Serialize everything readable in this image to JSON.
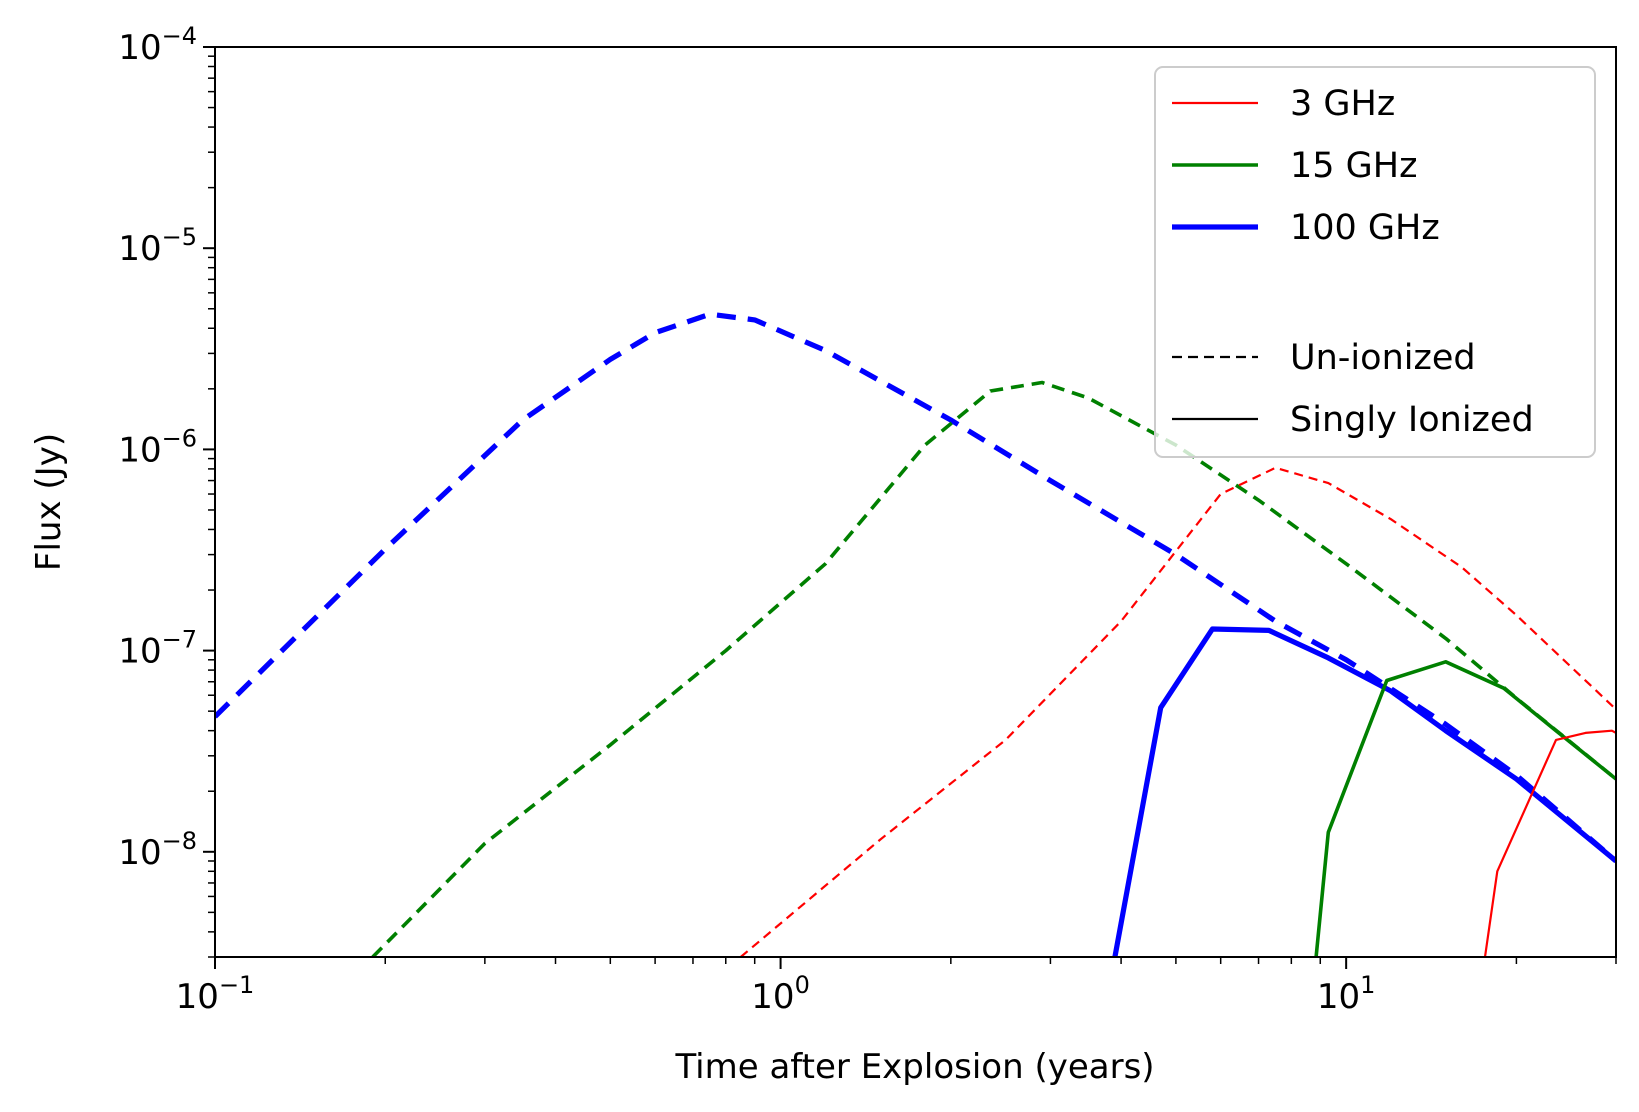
{
  "chart_data": {
    "type": "line",
    "xlabel": "Time after Explosion (years)",
    "ylabel": "Flux (Jy)",
    "xscale": "log",
    "yscale": "log",
    "xlim": [
      0.1,
      30
    ],
    "ylim": [
      3e-09,
      0.0001
    ],
    "x_ticks": [
      {
        "base": "10",
        "exp": "−1"
      },
      {
        "base": "10",
        "exp": "0"
      },
      {
        "base": "10",
        "exp": "1"
      }
    ],
    "y_ticks": [
      {
        "base": "10",
        "exp": "−8"
      },
      {
        "base": "10",
        "exp": "−7"
      },
      {
        "base": "10",
        "exp": "−6"
      },
      {
        "base": "10",
        "exp": "−5"
      },
      {
        "base": "10",
        "exp": "−4"
      }
    ],
    "grid": false,
    "legend_position": "top-right",
    "legend": {
      "frequencies": [
        {
          "label": "3 GHz",
          "color": "#ff0000",
          "style": "thin"
        },
        {
          "label": "15 GHz",
          "color": "#008000",
          "style": "medium"
        },
        {
          "label": "100 GHz",
          "color": "#0000ff",
          "style": "thick"
        }
      ],
      "states": [
        {
          "label": "Un-ionized",
          "dash": "dashed"
        },
        {
          "label": "Singly Ionized",
          "dash": "solid"
        }
      ]
    },
    "series": [
      {
        "freq": "100 GHz",
        "state": "Un-ionized",
        "color": "#0000ff",
        "dashed": true,
        "x": [
          0.1,
          0.2,
          0.35,
          0.5,
          0.6,
          0.75,
          0.9,
          1.2,
          2.0,
          3.0,
          5.0,
          7.5,
          10,
          15,
          20,
          30
        ],
        "y": [
          4.7e-08,
          3.2e-07,
          1.4e-06,
          2.8e-06,
          3.8e-06,
          4.7e-06,
          4.4e-06,
          3.1e-06,
          1.4e-06,
          7e-07,
          3e-07,
          1.4e-07,
          9e-08,
          4.3e-08,
          2.4e-08,
          9e-09
        ]
      },
      {
        "freq": "15 GHz",
        "state": "Un-ionized",
        "color": "#008000",
        "dashed": true,
        "x": [
          0.19,
          0.3,
          0.5,
          0.8,
          1.2,
          1.8,
          2.35,
          2.9,
          3.5,
          5.0,
          7.0,
          10,
          15,
          20,
          30
        ],
        "y": [
          3e-09,
          1.1e-08,
          3.4e-08,
          1e-07,
          2.7e-07,
          1.05e-06,
          1.95e-06,
          2.15e-06,
          1.8e-06,
          1.05e-06,
          5.6e-07,
          2.7e-07,
          1.15e-07,
          5.8e-08,
          2.3e-08
        ]
      },
      {
        "freq": "3 GHz",
        "state": "Un-ionized",
        "color": "#ff0000",
        "dashed": true,
        "x": [
          0.85,
          1.5,
          2.5,
          4.0,
          6.0,
          7.5,
          9.3,
          12,
          16,
          20,
          30
        ],
        "y": [
          3e-09,
          1.15e-08,
          3.6e-08,
          1.4e-07,
          6e-07,
          8.1e-07,
          6.8e-07,
          4.5e-07,
          2.6e-07,
          1.5e-07,
          5.1e-08
        ]
      },
      {
        "freq": "100 GHz",
        "state": "Singly Ionized",
        "color": "#0000ff",
        "dashed": false,
        "x": [
          3.9,
          4.7,
          5.8,
          7.3,
          9.3,
          12,
          15,
          20,
          30
        ],
        "y": [
          3e-09,
          5.2e-08,
          1.28e-07,
          1.26e-07,
          9.2e-08,
          6.3e-08,
          4e-08,
          2.3e-08,
          9e-09
        ]
      },
      {
        "freq": "15 GHz",
        "state": "Singly Ionized",
        "color": "#008000",
        "dashed": false,
        "x": [
          8.85,
          9.3,
          11.8,
          15,
          19,
          23.5,
          30
        ],
        "y": [
          3e-09,
          1.25e-08,
          7.1e-08,
          8.8e-08,
          6.5e-08,
          4e-08,
          2.3e-08
        ]
      },
      {
        "freq": "3 GHz",
        "state": "Singly Ionized",
        "color": "#ff0000",
        "dashed": false,
        "x": [
          17.6,
          18.5,
          23.5,
          26.5,
          29.5,
          30
        ],
        "y": [
          3e-09,
          8e-09,
          3.6e-08,
          3.9e-08,
          4e-08,
          3.9e-08
        ]
      }
    ]
  }
}
